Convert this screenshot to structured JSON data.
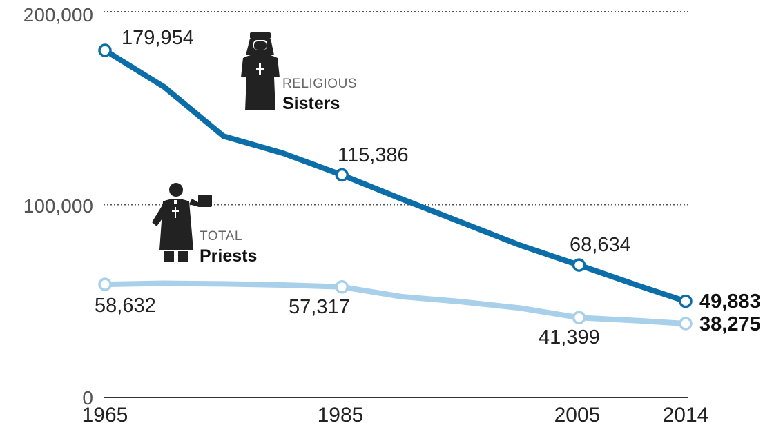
{
  "chart_data": {
    "type": "line",
    "x": [
      1965,
      1970,
      1975,
      1980,
      1985,
      1990,
      1995,
      2000,
      2005,
      2010,
      2014
    ],
    "x_ticks": [
      "1965",
      "1985",
      "2005",
      "2014"
    ],
    "y_ticks": [
      "0",
      "100,000",
      "200,000"
    ],
    "ylim": [
      0,
      200000
    ],
    "grid": "dotted horizontal lines at 100,000 and 200,000",
    "series": [
      {
        "name": "RELIGIOUS Sisters",
        "caption_small": "RELIGIOUS",
        "caption_big": "Sisters",
        "color": "#0b6ea8",
        "icon": "nun-icon",
        "values": [
          179954,
          161000,
          135500,
          126700,
          115386,
          103000,
          91000,
          79000,
          68634,
          58000,
          49883
        ],
        "labeled": [
          {
            "x": 1965,
            "value": 179954,
            "text": "179,954"
          },
          {
            "x": 1985,
            "value": 115386,
            "text": "115,386"
          },
          {
            "x": 2005,
            "value": 68634,
            "text": "68,634"
          },
          {
            "x": 2014,
            "value": 49883,
            "text": "49,883"
          }
        ]
      },
      {
        "name": "TOTAL Priests",
        "caption_small": "TOTAL",
        "caption_big": "Priests",
        "color": "#a8d0ea",
        "icon": "priest-icon",
        "values": [
          58632,
          59200,
          58900,
          58300,
          57317,
          52300,
          49700,
          46400,
          41399,
          39800,
          38275
        ],
        "labeled": [
          {
            "x": 1965,
            "value": 58632,
            "text": "58,632"
          },
          {
            "x": 1985,
            "value": 57317,
            "text": "57,317"
          },
          {
            "x": 2005,
            "value": 41399,
            "text": "41,399"
          },
          {
            "x": 2014,
            "value": 38275,
            "text": "38,275"
          }
        ]
      }
    ]
  }
}
